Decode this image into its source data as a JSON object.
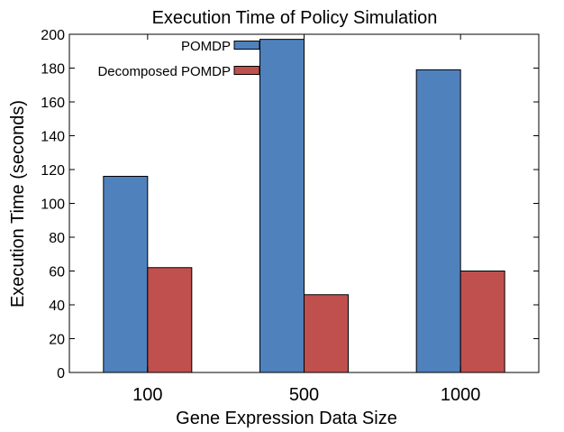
{
  "chart_data": {
    "type": "bar",
    "title": "Execution Time of Policy Simulation",
    "xlabel": "Gene Expression Data Size",
    "ylabel": "Execution Time (seconds)",
    "categories": [
      "100",
      "500",
      "1000"
    ],
    "ylim": [
      0,
      200
    ],
    "yticks": [
      0,
      20,
      40,
      60,
      80,
      100,
      120,
      140,
      160,
      180,
      200
    ],
    "grid": false,
    "legend_position": "top-left",
    "series": [
      {
        "name": "POMDP",
        "color": "#4f81bd",
        "values": [
          116,
          197,
          179
        ]
      },
      {
        "name": "Decomposed POMDP",
        "color": "#c0504d",
        "values": [
          62,
          46,
          60
        ]
      }
    ]
  }
}
